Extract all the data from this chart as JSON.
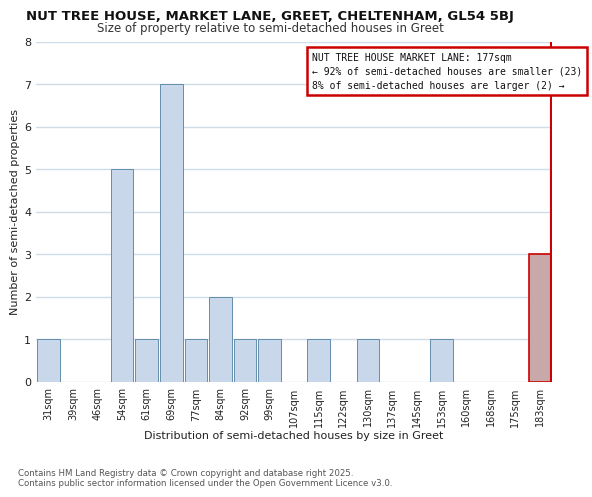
{
  "title": "NUT TREE HOUSE, MARKET LANE, GREET, CHELTENHAM, GL54 5BJ",
  "subtitle": "Size of property relative to semi-detached houses in Greet",
  "xlabel": "Distribution of semi-detached houses by size in Greet",
  "ylabel": "Number of semi-detached properties",
  "bar_labels": [
    "31sqm",
    "39sqm",
    "46sqm",
    "54sqm",
    "61sqm",
    "69sqm",
    "77sqm",
    "84sqm",
    "92sqm",
    "99sqm",
    "107sqm",
    "115sqm",
    "122sqm",
    "130sqm",
    "137sqm",
    "145sqm",
    "153sqm",
    "160sqm",
    "168sqm",
    "175sqm",
    "183sqm"
  ],
  "bar_values": [
    1,
    0,
    0,
    5,
    1,
    7,
    1,
    2,
    1,
    1,
    0,
    1,
    0,
    1,
    0,
    0,
    1,
    0,
    0,
    0,
    3
  ],
  "highlight_index": 20,
  "bar_color_normal": "#c8d8ea",
  "bar_color_highlight": "#c8a8a8",
  "bar_edge_color": "#5080a0",
  "bar_edge_highlight": "#cc0000",
  "ylim": [
    0,
    8
  ],
  "legend_title": "NUT TREE HOUSE MARKET LANE: 177sqm",
  "legend_line1": "← 92% of semi-detached houses are smaller (23)",
  "legend_line2": "8% of semi-detached houses are larger (2) →",
  "bg_color": "#ffffff",
  "plot_bg_color": "#ffffff",
  "grid_color": "#d0dce8",
  "footnote1": "Contains HM Land Registry data © Crown copyright and database right 2025.",
  "footnote2": "Contains public sector information licensed under the Open Government Licence v3.0."
}
